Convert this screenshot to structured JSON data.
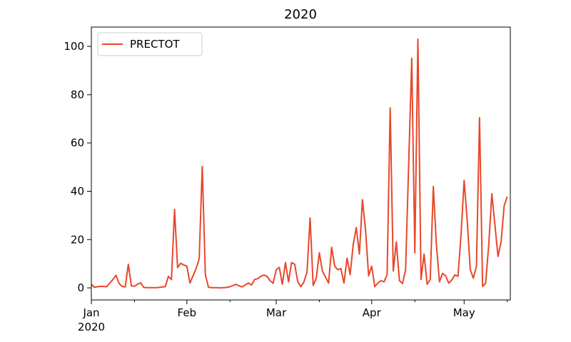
{
  "chart_data": {
    "type": "line",
    "title": "2020",
    "xlabel": "",
    "ylabel": "",
    "x_start": "2020-01-01",
    "x_end": "2020-05-10",
    "xlim": [
      "2020-01-01",
      "2020-05-16"
    ],
    "ylim": [
      -5,
      108
    ],
    "grid": false,
    "legend_position": "upper-left",
    "x_ticks": [
      {
        "date": "2020-01-01",
        "label": "Jan",
        "sublabel": "2020"
      },
      {
        "date": "2020-02-01",
        "label": "Feb",
        "sublabel": ""
      },
      {
        "date": "2020-03-01",
        "label": "Mar",
        "sublabel": ""
      },
      {
        "date": "2020-04-01",
        "label": "Apr",
        "sublabel": ""
      },
      {
        "date": "2020-05-01",
        "label": "May",
        "sublabel": ""
      }
    ],
    "x_minor_ticks": [
      "2020-01-15",
      "2020-02-15",
      "2020-03-15",
      "2020-04-15",
      "2020-05-15"
    ],
    "y_ticks": [
      0,
      20,
      40,
      60,
      80,
      100
    ],
    "series": [
      {
        "name": "PRECTOT",
        "color": "#e8472a",
        "values": [
          1.5,
          0.2,
          0.5,
          0.6,
          0.6,
          0.5,
          2,
          3.5,
          5.2,
          1.8,
          0.6,
          0.4,
          9.8,
          0.8,
          0.7,
          1.5,
          2.1,
          0.2,
          0.1,
          0.1,
          0.1,
          0.1,
          0.2,
          0.4,
          0.5,
          4.8,
          3.4,
          32.5,
          8.4,
          10.2,
          9.5,
          9,
          2,
          5,
          8,
          12,
          50.3,
          5.5,
          0.3,
          0.1,
          0.1,
          0.1,
          0,
          0.1,
          0.2,
          0.5,
          1,
          1.5,
          0.8,
          0.4,
          1.3,
          2,
          1.2,
          3.5,
          3.8,
          4.8,
          5.3,
          4.8,
          3,
          1.9,
          7.5,
          8.5,
          1.5,
          10.5,
          2.5,
          10.5,
          9.8,
          2.5,
          0.5,
          2.5,
          6.5,
          29,
          1,
          4,
          14.5,
          7,
          4.5,
          2,
          16.8,
          9,
          7.5,
          8,
          2,
          12.3,
          5.5,
          18,
          25,
          14,
          36.5,
          24,
          5,
          9,
          0.5,
          2,
          3,
          2.5,
          5.5,
          74.5,
          7,
          19,
          3,
          1.8,
          7.5,
          51,
          95,
          14.5,
          103,
          3.5,
          14,
          1.5,
          3.5,
          42,
          18,
          2.5,
          6,
          5,
          2,
          3.3,
          5.4,
          4.8,
          22,
          44.5,
          28,
          7.5,
          4,
          9,
          70.5,
          0.6,
          2,
          18,
          39,
          26,
          13,
          19,
          34,
          37.8
        ]
      }
    ]
  }
}
